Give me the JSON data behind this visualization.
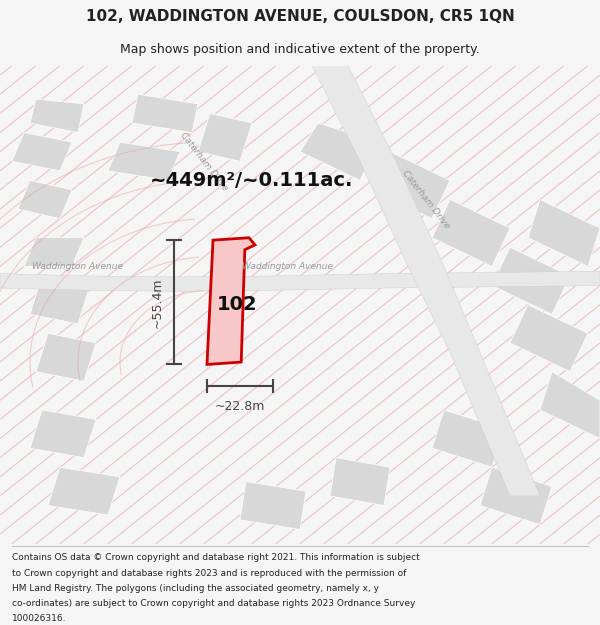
{
  "title": "102, WADDINGTON AVENUE, COULSDON, CR5 1QN",
  "subtitle": "Map shows position and indicative extent of the property.",
  "area_text": "~449m²/~0.111ac.",
  "label_102": "102",
  "dim_vertical": "~55.4m",
  "dim_horizontal": "~22.8m",
  "footer_lines": [
    "Contains OS data © Crown copyright and database right 2021. This information is subject",
    "to Crown copyright and database rights 2023 and is reproduced with the permission of",
    "HM Land Registry. The polygons (including the associated geometry, namely x, y",
    "co-ordinates) are subject to Crown copyright and database rights 2023 Ordnance Survey",
    "100026316."
  ],
  "bg_color": "#f5f5f5",
  "map_bg": "#ffffff",
  "building_color": "#d8d8d8",
  "red_line_color": "#cc0000",
  "pink_line_color": "#e8a0a0",
  "street_label_color": "#999999",
  "title_color": "#222222",
  "footer_color": "#222222",
  "dim_color": "#444444",
  "figsize": [
    6.0,
    6.25
  ],
  "dpi": 100
}
